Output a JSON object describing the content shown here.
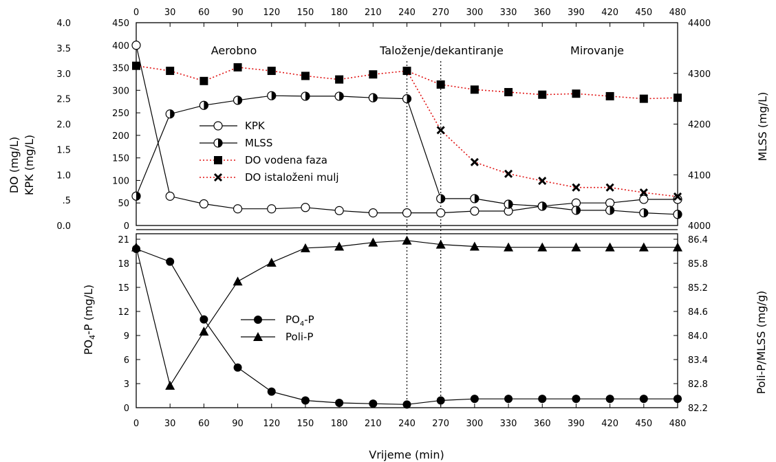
{
  "chart_data": [
    {
      "type": "line",
      "panel": "top",
      "x": [
        0,
        30,
        60,
        90,
        120,
        150,
        180,
        210,
        240,
        270,
        300,
        330,
        360,
        390,
        420,
        450,
        480
      ],
      "x_ticks": [
        "0",
        "30",
        "60",
        "90",
        "120",
        "150",
        "180",
        "210",
        "240",
        "270",
        "300",
        "330",
        "360",
        "390",
        "420",
        "450",
        "480"
      ],
      "xlim": [
        0,
        480
      ],
      "phases": [
        "Aerobno",
        "Taloženje/dekantiranje",
        "Mirovanje"
      ],
      "phase_lines_x": [
        240,
        270
      ],
      "left_axis": {
        "label_line1": "DO (mg/L)",
        "label_line2": "KPK (mg/L)",
        "do_ticks": [
          "4.0",
          "3.5",
          "3.0",
          "2.5",
          "2.0",
          "1.5",
          "1.0",
          ".5",
          "0.0"
        ],
        "kpk_ticks": [
          "450",
          "400",
          "350",
          "300",
          "250",
          "200",
          "150",
          "100",
          "50",
          "0"
        ],
        "ylim": [
          0,
          450
        ]
      },
      "right_axis": {
        "label": "MLSS (mg/L)",
        "ticks": [
          "4400",
          "4300",
          "4200",
          "4100",
          "4000"
        ],
        "ylim": [
          4000,
          4400
        ]
      },
      "series": [
        {
          "name": "KPK",
          "axis": "kpk",
          "marker": "open-circle",
          "line": "solid",
          "values": [
            400,
            65,
            48,
            37,
            37,
            40,
            33,
            28,
            28,
            28,
            32,
            32,
            43,
            50,
            50,
            58,
            58
          ]
        },
        {
          "name": "MLSS",
          "axis": "mlss",
          "marker": "half-circle",
          "line": "solid",
          "values": [
            4058,
            4220,
            4237,
            4247,
            4256,
            4255,
            4255,
            4252,
            4250,
            4053,
            4053,
            4042,
            4038,
            4030,
            4030,
            4025,
            4022
          ]
        },
        {
          "name": "DO vodena faza",
          "axis": "do",
          "marker": "filled-square",
          "line": "dotted",
          "color": "#e01010",
          "values": [
            3.15,
            3.05,
            2.85,
            3.12,
            3.05,
            2.95,
            2.88,
            2.98,
            3.05,
            2.78,
            2.68,
            2.63,
            2.58,
            2.6,
            2.55,
            2.5,
            2.52
          ]
        },
        {
          "name": "DO istaloženi mulj",
          "axis": "do",
          "marker": "x",
          "line": "dotted",
          "color": "#e01010",
          "x": [
            240,
            270,
            300,
            330,
            360,
            390,
            420,
            450,
            480
          ],
          "values": [
            3.05,
            1.88,
            1.25,
            1.02,
            0.88,
            0.75,
            0.75,
            0.65,
            0.57
          ]
        }
      ]
    },
    {
      "type": "line",
      "panel": "bottom",
      "x": [
        0,
        30,
        60,
        90,
        120,
        150,
        180,
        210,
        240,
        270,
        300,
        330,
        360,
        390,
        420,
        450,
        480
      ],
      "x_ticks": [
        "0",
        "30",
        "60",
        "90",
        "120",
        "150",
        "180",
        "210",
        "240",
        "270",
        "300",
        "330",
        "360",
        "390",
        "420",
        "450",
        "480"
      ],
      "xlim": [
        0,
        480
      ],
      "xlabel": "Vrijeme (min)",
      "left_axis": {
        "label_main": "PO",
        "label_sub": "4",
        "label_tail": "-P (mg/L)",
        "ticks": [
          "21",
          "18",
          "15",
          "12",
          "9",
          "6",
          "3",
          "0"
        ],
        "ylim": [
          0,
          21
        ]
      },
      "right_axis": {
        "label": "Poli-P/MLSS (mg/g)",
        "ticks": [
          "86.4",
          "85.8",
          "85.2",
          "84.6",
          "84.0",
          "83.4",
          "82.8",
          "82.2"
        ],
        "ylim": [
          82.2,
          86.4
        ]
      },
      "series": [
        {
          "name_main": "PO",
          "name_sub": "4",
          "name_tail": "-P",
          "axis": "po4",
          "marker": "filled-circle",
          "line": "solid",
          "values": [
            19.8,
            18.2,
            11.0,
            5.0,
            2.0,
            0.9,
            0.6,
            0.5,
            0.4,
            0.9,
            1.1,
            1.1,
            1.1,
            1.1,
            1.1,
            1.1,
            1.1
          ]
        },
        {
          "name": "Poli-P",
          "axis": "polip",
          "marker": "filled-triangle",
          "line": "solid",
          "values": [
            86.2,
            82.75,
            84.1,
            85.35,
            85.82,
            86.18,
            86.22,
            86.32,
            86.37,
            86.27,
            86.22,
            86.2,
            86.2,
            86.2,
            86.2,
            86.2,
            86.2
          ]
        }
      ]
    }
  ]
}
